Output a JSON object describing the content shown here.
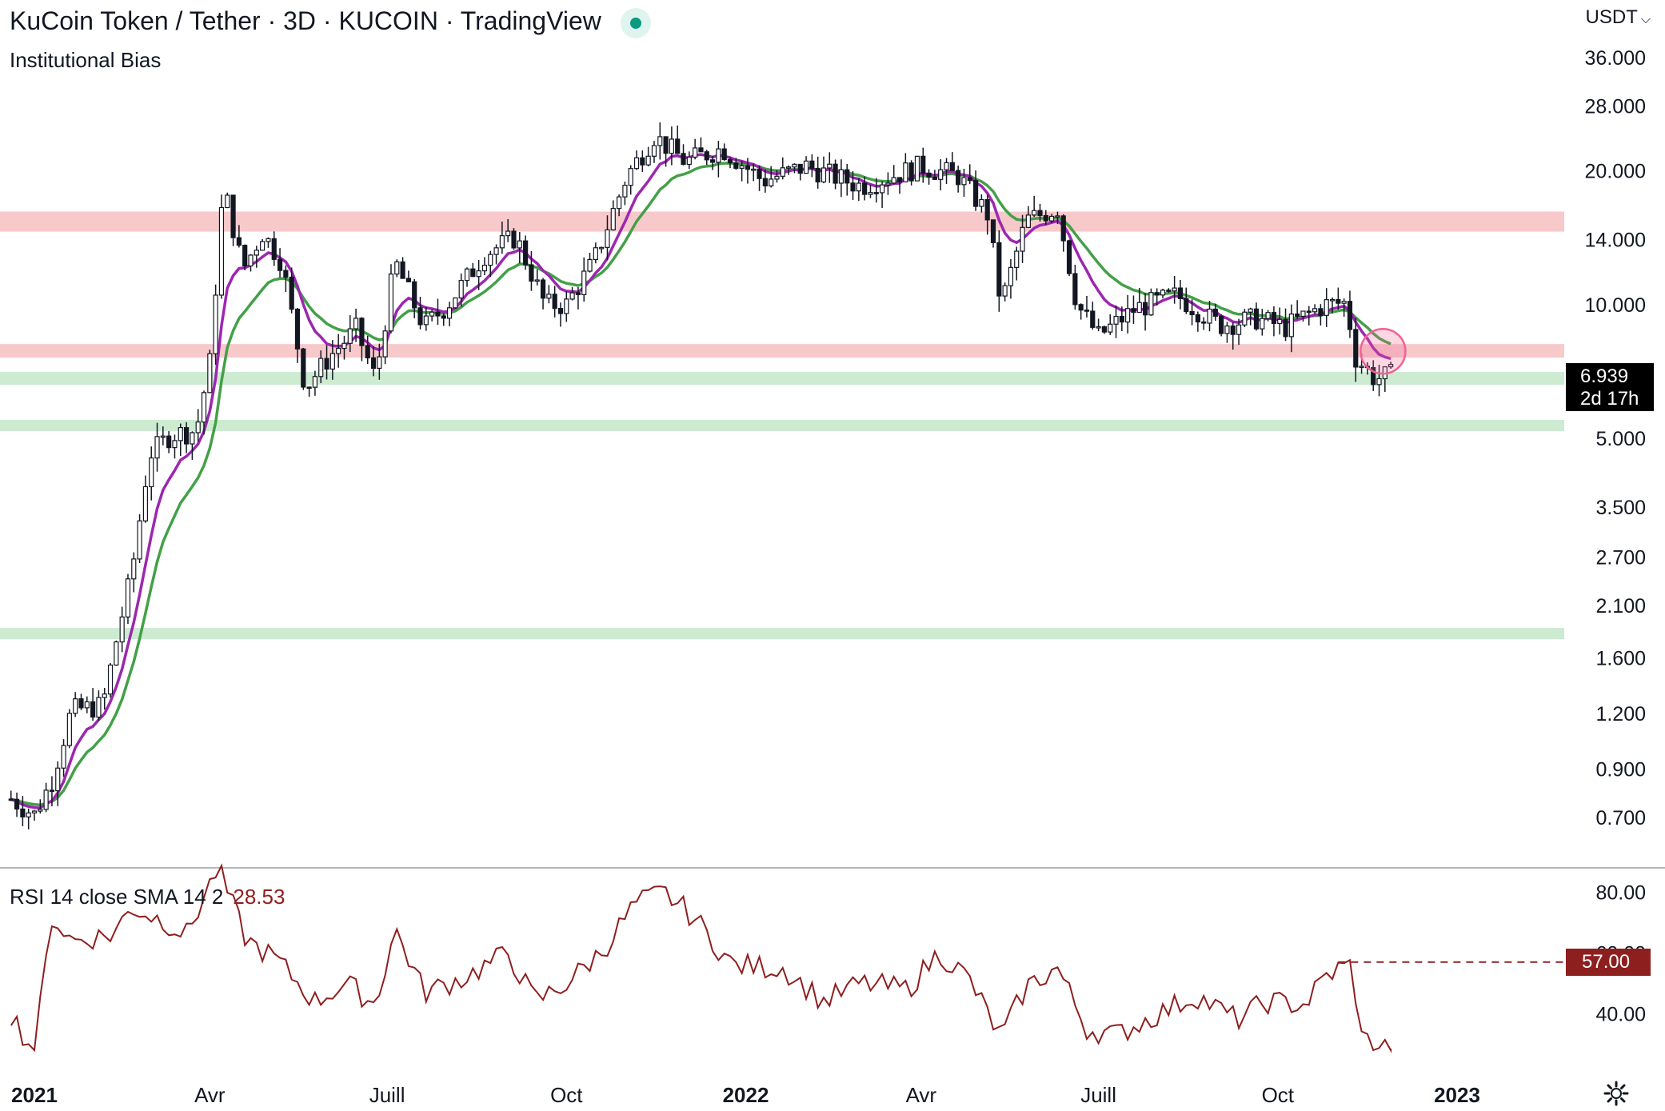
{
  "header": {
    "title": "KuCoin Token / Tether · 3D · KUCOIN · TradingView",
    "indicator": "Institutional Bias",
    "currency": "USDT",
    "live_icon": "live-status-dot"
  },
  "price_badge": {
    "price": "6.939",
    "countdown": "2d 17h"
  },
  "rsi": {
    "label": "RSI 14 close SMA 14 2",
    "value": "28.53",
    "level_label": "57.00",
    "ticks": [
      "80.00",
      "60.00",
      "40.00"
    ]
  },
  "colors": {
    "candle": "#131722",
    "ema_fast": "#9c27b0",
    "ema_slow": "#43a047",
    "resistance_zone": "#f7c9cb",
    "support_zone": "#cdebd1",
    "rsi_line": "#8e1f1f",
    "highlight_circle": "#f06292"
  },
  "chart_data": {
    "type": "candlestick",
    "title": "KuCoin Token / Tether · 3D · KUCOIN · TradingView",
    "scale": "log",
    "y_ticks": [
      36,
      28,
      20,
      14,
      10,
      5,
      3.5,
      2.7,
      2.1,
      1.6,
      1.2,
      0.9,
      0.7
    ],
    "y_tick_labels": [
      "36.000",
      "28.000",
      "20.000",
      "14.000",
      "10.000",
      "5.000",
      "3.500",
      "2.700",
      "2.100",
      "1.600",
      "1.200",
      "0.900",
      "0.700"
    ],
    "x_ticks": [
      {
        "label": "2021",
        "date": "2021-01-01",
        "bold": true
      },
      {
        "label": "Avr",
        "date": "2021-04-01",
        "bold": false
      },
      {
        "label": "Juill",
        "date": "2021-07-01",
        "bold": false
      },
      {
        "label": "Oct",
        "date": "2021-10-01",
        "bold": false
      },
      {
        "label": "2022",
        "date": "2022-01-01",
        "bold": true
      },
      {
        "label": "Avr",
        "date": "2022-04-01",
        "bold": false
      },
      {
        "label": "Juill",
        "date": "2022-07-01",
        "bold": false
      },
      {
        "label": "Oct",
        "date": "2022-10-01",
        "bold": false
      },
      {
        "label": "2023",
        "date": "2023-01-01",
        "bold": true
      }
    ],
    "zones": [
      {
        "kind": "resistance",
        "low": 14.6,
        "high": 16.2
      },
      {
        "kind": "resistance",
        "low": 7.6,
        "high": 8.15
      },
      {
        "kind": "support",
        "low": 6.6,
        "high": 7.05
      },
      {
        "kind": "support",
        "low": 5.2,
        "high": 5.5
      },
      {
        "kind": "support",
        "low": 1.78,
        "high": 1.87
      }
    ],
    "series_close": [
      {
        "date": "2020-12-20",
        "close": 0.77
      },
      {
        "date": "2021-01-01",
        "close": 0.71
      },
      {
        "date": "2021-01-10",
        "close": 0.85
      },
      {
        "date": "2021-01-20",
        "close": 1.22
      },
      {
        "date": "2021-02-05",
        "close": 1.25
      },
      {
        "date": "2021-02-12",
        "close": 1.75
      },
      {
        "date": "2021-02-20",
        "close": 2.5
      },
      {
        "date": "2021-03-01",
        "close": 4.6
      },
      {
        "date": "2021-03-12",
        "close": 5.1
      },
      {
        "date": "2021-03-25",
        "close": 5.2
      },
      {
        "date": "2021-04-01",
        "close": 7.4
      },
      {
        "date": "2021-04-08",
        "close": 18.5
      },
      {
        "date": "2021-04-18",
        "close": 12.0
      },
      {
        "date": "2021-04-28",
        "close": 14.5
      },
      {
        "date": "2021-05-08",
        "close": 12.5
      },
      {
        "date": "2021-05-20",
        "close": 6.5
      },
      {
        "date": "2021-06-01",
        "close": 7.6
      },
      {
        "date": "2021-06-15",
        "close": 8.8
      },
      {
        "date": "2021-06-25",
        "close": 6.8
      },
      {
        "date": "2021-07-05",
        "close": 12.5
      },
      {
        "date": "2021-07-20",
        "close": 8.9
      },
      {
        "date": "2021-08-01",
        "close": 10.0
      },
      {
        "date": "2021-08-20",
        "close": 13.0
      },
      {
        "date": "2021-09-05",
        "close": 14.2
      },
      {
        "date": "2021-09-20",
        "close": 10.0
      },
      {
        "date": "2021-10-01",
        "close": 10.0
      },
      {
        "date": "2021-10-15",
        "close": 12.5
      },
      {
        "date": "2021-11-01",
        "close": 19.5
      },
      {
        "date": "2021-11-15",
        "close": 24.0
      },
      {
        "date": "2021-12-01",
        "close": 21.0
      },
      {
        "date": "2021-12-20",
        "close": 22.5
      },
      {
        "date": "2022-01-10",
        "close": 19.0
      },
      {
        "date": "2022-02-01",
        "close": 20.5
      },
      {
        "date": "2022-03-01",
        "close": 18.5
      },
      {
        "date": "2022-04-01",
        "close": 20.5
      },
      {
        "date": "2022-04-20",
        "close": 19.5
      },
      {
        "date": "2022-05-05",
        "close": 16.0
      },
      {
        "date": "2022-05-12",
        "close": 10.0
      },
      {
        "date": "2022-05-25",
        "close": 15.5
      },
      {
        "date": "2022-06-10",
        "close": 16.5
      },
      {
        "date": "2022-06-20",
        "close": 10.0
      },
      {
        "date": "2022-07-01",
        "close": 8.5
      },
      {
        "date": "2022-07-20",
        "close": 9.8
      },
      {
        "date": "2022-08-10",
        "close": 10.5
      },
      {
        "date": "2022-09-01",
        "close": 9.0
      },
      {
        "date": "2022-09-20",
        "close": 9.3
      },
      {
        "date": "2022-10-05",
        "close": 8.9
      },
      {
        "date": "2022-10-25",
        "close": 10.0
      },
      {
        "date": "2022-11-05",
        "close": 10.1
      },
      {
        "date": "2022-11-10",
        "close": 7.6
      },
      {
        "date": "2022-11-20",
        "close": 6.8
      },
      {
        "date": "2022-11-28",
        "close": 6.939
      }
    ],
    "ema_fast_end": 7.7,
    "ema_slow_end": 8.15,
    "rsi_series": [
      {
        "date": "2020-12-20",
        "rsi": 40
      },
      {
        "date": "2021-01-01",
        "rsi": 27
      },
      {
        "date": "2021-01-10",
        "rsi": 72
      },
      {
        "date": "2021-01-20",
        "rsi": 64
      },
      {
        "date": "2021-02-10",
        "rsi": 66
      },
      {
        "date": "2021-02-20",
        "rsi": 75
      },
      {
        "date": "2021-03-10",
        "rsi": 70
      },
      {
        "date": "2021-03-20",
        "rsi": 66
      },
      {
        "date": "2021-04-05",
        "rsi": 88
      },
      {
        "date": "2021-04-20",
        "rsi": 64
      },
      {
        "date": "2021-05-05",
        "rsi": 58
      },
      {
        "date": "2021-05-25",
        "rsi": 44
      },
      {
        "date": "2021-06-10",
        "rsi": 50
      },
      {
        "date": "2021-06-25",
        "rsi": 43
      },
      {
        "date": "2021-07-05",
        "rsi": 68
      },
      {
        "date": "2021-07-20",
        "rsi": 47
      },
      {
        "date": "2021-08-10",
        "rsi": 52
      },
      {
        "date": "2021-09-01",
        "rsi": 60
      },
      {
        "date": "2021-09-15",
        "rsi": 44
      },
      {
        "date": "2021-10-01",
        "rsi": 50
      },
      {
        "date": "2021-10-20",
        "rsi": 61
      },
      {
        "date": "2021-11-05",
        "rsi": 76
      },
      {
        "date": "2021-11-20",
        "rsi": 80
      },
      {
        "date": "2021-12-05",
        "rsi": 72
      },
      {
        "date": "2021-12-25",
        "rsi": 56
      },
      {
        "date": "2022-01-20",
        "rsi": 55
      },
      {
        "date": "2022-02-10",
        "rsi": 44
      },
      {
        "date": "2022-03-01",
        "rsi": 50
      },
      {
        "date": "2022-03-25",
        "rsi": 48
      },
      {
        "date": "2022-04-10",
        "rsi": 60
      },
      {
        "date": "2022-04-25",
        "rsi": 52
      },
      {
        "date": "2022-05-12",
        "rsi": 32
      },
      {
        "date": "2022-05-25",
        "rsi": 49
      },
      {
        "date": "2022-06-10",
        "rsi": 55
      },
      {
        "date": "2022-06-25",
        "rsi": 35
      },
      {
        "date": "2022-07-10",
        "rsi": 33
      },
      {
        "date": "2022-08-01",
        "rsi": 40
      },
      {
        "date": "2022-08-20",
        "rsi": 46
      },
      {
        "date": "2022-09-10",
        "rsi": 38
      },
      {
        "date": "2022-09-25",
        "rsi": 44
      },
      {
        "date": "2022-10-15",
        "rsi": 43
      },
      {
        "date": "2022-10-25",
        "rsi": 52
      },
      {
        "date": "2022-11-02",
        "rsi": 55
      },
      {
        "date": "2022-11-08",
        "rsi": 56
      },
      {
        "date": "2022-11-13",
        "rsi": 32
      },
      {
        "date": "2022-11-20",
        "rsi": 30
      },
      {
        "date": "2022-11-28",
        "rsi": 28.53
      }
    ],
    "rsi_ylim": [
      28,
      88
    ],
    "rsi_level": 57,
    "highlight": {
      "date": "2022-11-24",
      "price": 7.85,
      "shape": "circle"
    }
  }
}
